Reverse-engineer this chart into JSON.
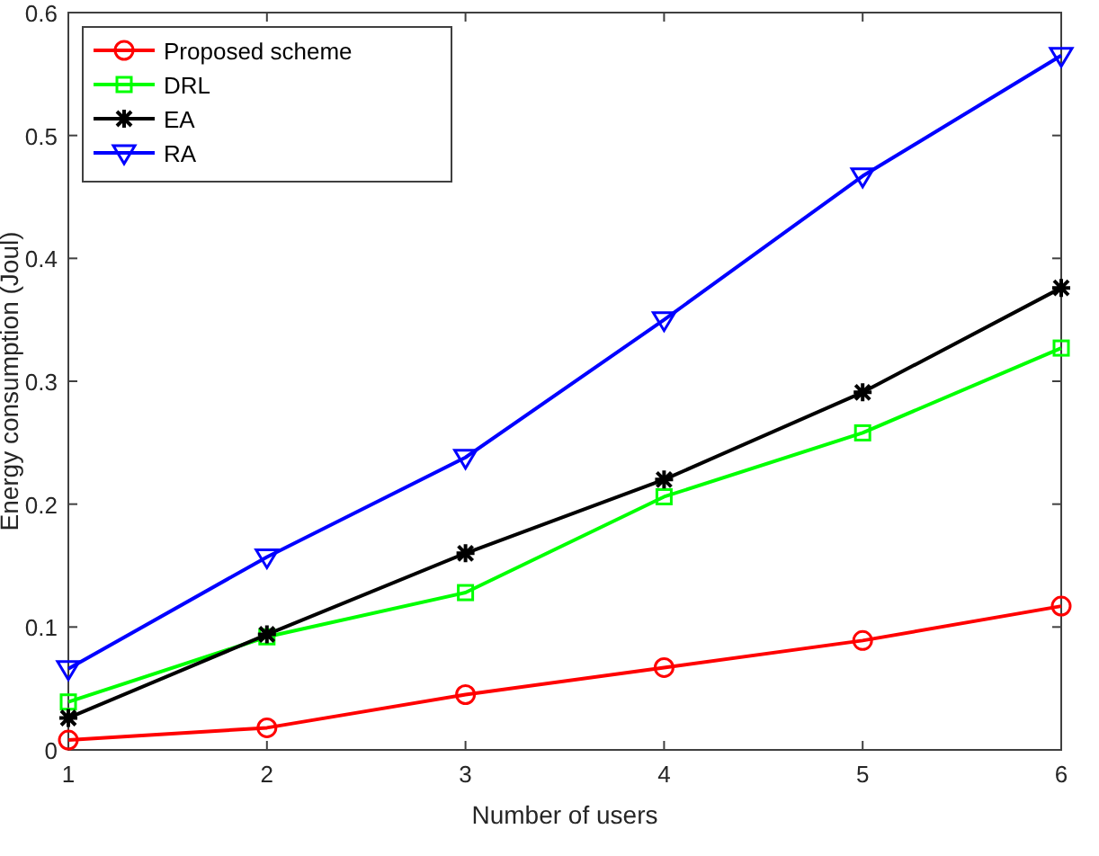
{
  "chart_data": {
    "type": "line",
    "xlabel": "Number of users",
    "ylabel": "Energy consumption (Joul)",
    "x": [
      1,
      2,
      3,
      4,
      5,
      6
    ],
    "xlim": [
      1,
      6
    ],
    "xticks": [
      1,
      2,
      3,
      4,
      5,
      6
    ],
    "ylim": [
      0,
      0.6
    ],
    "yticks": [
      0,
      0.1,
      0.2,
      0.3,
      0.4,
      0.5,
      0.6
    ],
    "grid": false,
    "legend": "top left",
    "line_style": "solid",
    "series": [
      {
        "name": "Proposed scheme",
        "color": "#ff0000",
        "marker": "circle",
        "values": [
          0.008,
          0.018,
          0.045,
          0.067,
          0.089,
          0.117
        ]
      },
      {
        "name": "DRL",
        "color": "#00ff00",
        "marker": "square",
        "values": [
          0.039,
          0.092,
          0.128,
          0.206,
          0.258,
          0.327
        ]
      },
      {
        "name": "EA",
        "color": "#000000",
        "marker": "cross",
        "values": [
          0.026,
          0.094,
          0.16,
          0.22,
          0.291,
          0.376
        ]
      },
      {
        "name": "RA",
        "color": "#0000ff",
        "marker": "triangle",
        "values": [
          0.066,
          0.157,
          0.238,
          0.35,
          0.467,
          0.565
        ]
      }
    ]
  }
}
